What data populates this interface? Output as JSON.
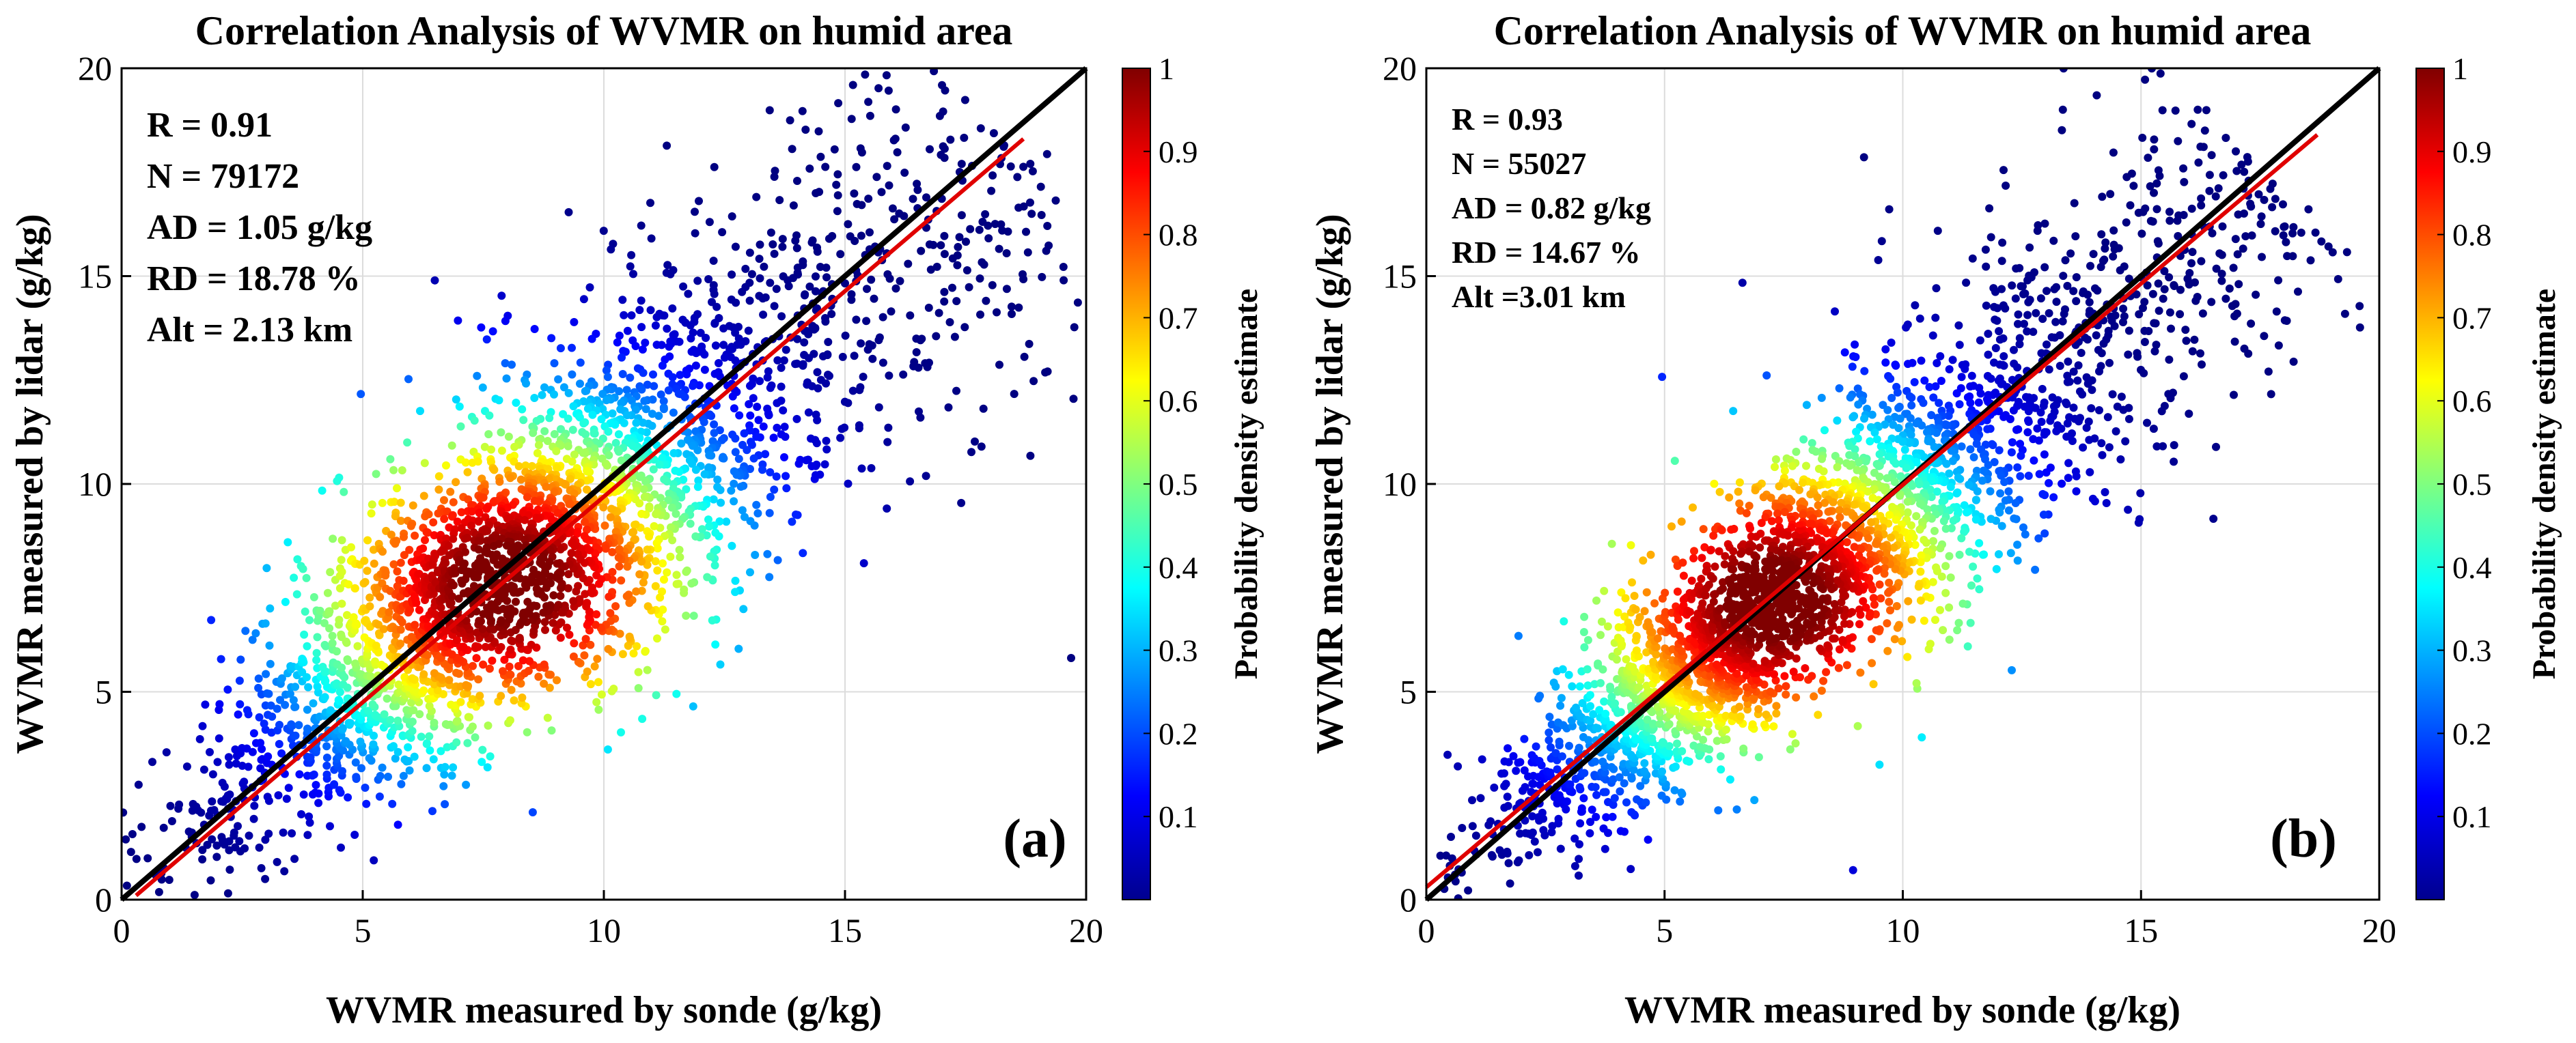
{
  "chart_data": [
    {
      "type": "scatter",
      "panel_label": "(a)",
      "title": "Correlation Analysis of WVMR on humid area",
      "xlabel": "WVMR measured by sonde  (g/kg)",
      "ylabel": "WVMR measured by lidar  (g/kg)",
      "xlim": [
        0,
        20
      ],
      "ylim": [
        0,
        20
      ],
      "xticks": [
        "0",
        "5",
        "10",
        "15",
        "20"
      ],
      "yticks": [
        "0",
        "5",
        "10",
        "15",
        "20"
      ],
      "grid": true,
      "stats": [
        "R = 0.91",
        "N = 79172",
        "AD = 1.05 g/kg",
        "RD = 18.78 %",
        "Alt = 2.13 km"
      ],
      "one_to_one_line": {
        "x": [
          0,
          20
        ],
        "y": [
          0,
          20
        ],
        "color": "#000000"
      },
      "fit_line": {
        "x": [
          0.3,
          18.7
        ],
        "y": [
          0.1,
          18.3
        ],
        "color": "#e00000"
      },
      "density_center": [
        8,
        7.6
      ],
      "scatter_spread": 1.9,
      "colorbar": {
        "label": "Probability density estimate",
        "ticks": [
          "0.1",
          "0.2",
          "0.3",
          "0.4",
          "0.5",
          "0.6",
          "0.7",
          "0.8",
          "0.9",
          "1"
        ],
        "range": [
          0,
          1
        ],
        "colormap": "jet"
      }
    },
    {
      "type": "scatter",
      "panel_label": "(b)",
      "title": "Correlation Analysis of WVMR on humid area",
      "xlabel": "WVMR measured by sonde  (g/kg)",
      "ylabel": "WVMR measured by lidar  (g/kg)",
      "xlim": [
        0,
        20
      ],
      "ylim": [
        0,
        20
      ],
      "xticks": [
        "0",
        "5",
        "10",
        "15",
        "20"
      ],
      "yticks": [
        "0",
        "5",
        "10",
        "15",
        "20"
      ],
      "grid": true,
      "stats": [
        "R = 0.93",
        "N = 55027",
        "AD = 0.82 g/kg",
        "RD = 14.67 %",
        "Alt =3.01 km"
      ],
      "one_to_one_line": {
        "x": [
          0,
          20
        ],
        "y": [
          0,
          20
        ],
        "color": "#000000"
      },
      "fit_line": {
        "x": [
          0,
          18.7
        ],
        "y": [
          0.3,
          18.4
        ],
        "color": "#e00000"
      },
      "density_center": [
        7.3,
        7.2
      ],
      "scatter_spread": 1.5,
      "colorbar": {
        "label": "Probability density estimate",
        "ticks": [
          "0.1",
          "0.2",
          "0.3",
          "0.4",
          "0.5",
          "0.6",
          "0.7",
          "0.8",
          "0.9",
          "1"
        ],
        "range": [
          0,
          1
        ],
        "colormap": "jet"
      }
    }
  ]
}
